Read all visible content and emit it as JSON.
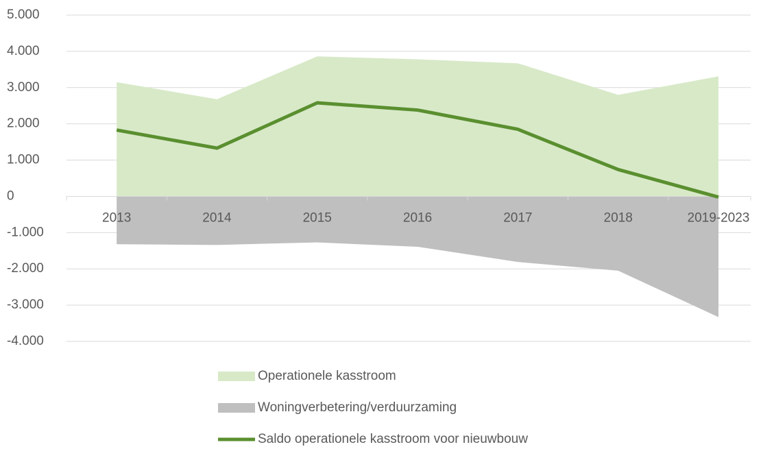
{
  "chart_data": {
    "type": "area-line",
    "categories": [
      "2013",
      "2014",
      "2015",
      "2016",
      "2017",
      "2018",
      "2019-2023"
    ],
    "series": [
      {
        "name": "Operationele kasstroom",
        "kind": "area",
        "color": "#d8e9c8",
        "values": [
          3150,
          2680,
          3860,
          3780,
          3670,
          2800,
          3310
        ]
      },
      {
        "name": "Woningverbetering/verduurzaming",
        "kind": "area",
        "color": "#bfbfbf",
        "values": [
          -1320,
          -1340,
          -1270,
          -1390,
          -1810,
          -2050,
          -3330
        ]
      },
      {
        "name": "Saldo operationele kasstroom voor nieuwbouw",
        "kind": "line",
        "color": "#5a8f2f",
        "values": [
          1830,
          1330,
          2580,
          2380,
          1850,
          740,
          -20
        ]
      }
    ],
    "ylim": [
      -4000,
      5000
    ],
    "yticks": [
      {
        "value": -4000,
        "label": "-4.000"
      },
      {
        "value": -3000,
        "label": "-3.000"
      },
      {
        "value": -2000,
        "label": "-2.000"
      },
      {
        "value": -1000,
        "label": "-1.000"
      },
      0,
      {
        "value": 1000,
        "label": "1.000"
      },
      {
        "value": 2000,
        "label": "2.000"
      },
      {
        "value": 3000,
        "label": "3.000"
      },
      {
        "value": 4000,
        "label": "4.000"
      },
      {
        "value": 5000,
        "label": "5.000"
      }
    ],
    "grid": true
  }
}
